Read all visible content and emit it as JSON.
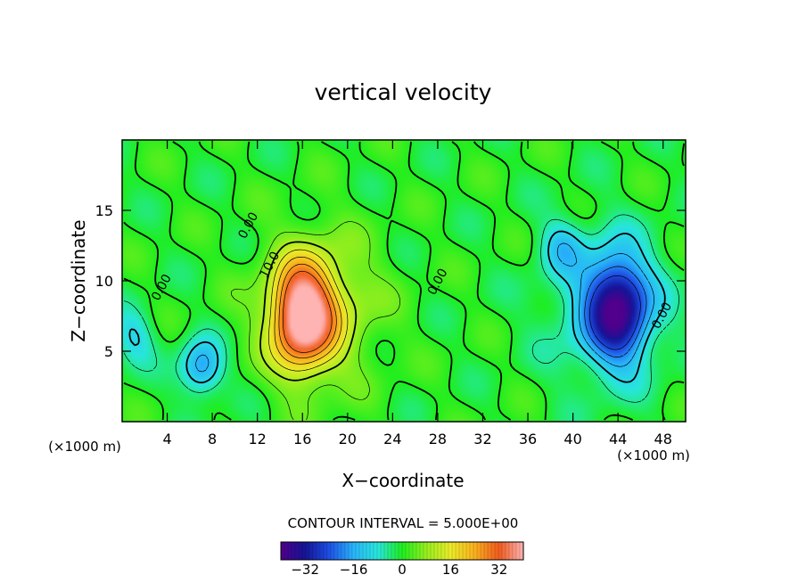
{
  "chart_data": {
    "type": "heatmap",
    "title": "vertical velocity",
    "xlabel": "X−coordinate",
    "ylabel": "Z−coordinate",
    "x_unit_left": "(×1000 m)",
    "x_unit_right": "(×1000 m)",
    "xlim": [
      0,
      50
    ],
    "ylim": [
      0,
      20
    ],
    "x_ticks": [
      4,
      8,
      12,
      16,
      20,
      24,
      28,
      32,
      36,
      40,
      44,
      48
    ],
    "y_ticks": [
      5,
      10,
      15
    ],
    "contour_interval_text": "CONTOUR INTERVAL = 5.000E+00",
    "contour_labels": [
      {
        "text": "0.00",
        "x": 3.8,
        "y": 9.4
      },
      {
        "text": "0.00",
        "x": 11.5,
        "y": 13.8
      },
      {
        "text": "10.0",
        "x": 13.4,
        "y": 11.0
      },
      {
        "text": "0.00",
        "x": 28.3,
        "y": 9.8
      },
      {
        "text": "0.00",
        "x": 48.2,
        "y": 7.4
      }
    ],
    "features": [
      {
        "type": "updraft",
        "x": 16.0,
        "z": 7.5,
        "peak": 38
      },
      {
        "type": "downdraft",
        "x": 44.0,
        "z": 8.0,
        "peak": -30
      },
      {
        "type": "downdraft",
        "x": 7.0,
        "z": 3.8,
        "peak": -18
      },
      {
        "type": "downdraft",
        "x": 1.0,
        "z": 6.0,
        "peak": -10
      },
      {
        "type": "downdraft",
        "x": 39.0,
        "z": 12.5,
        "peak": -10
      }
    ],
    "colorbar": {
      "range": [
        -40,
        40
      ],
      "ticks": [
        "−32",
        "−16",
        "0",
        "16",
        "32"
      ],
      "tick_values": [
        -32,
        -16,
        0,
        16,
        32
      ]
    }
  }
}
